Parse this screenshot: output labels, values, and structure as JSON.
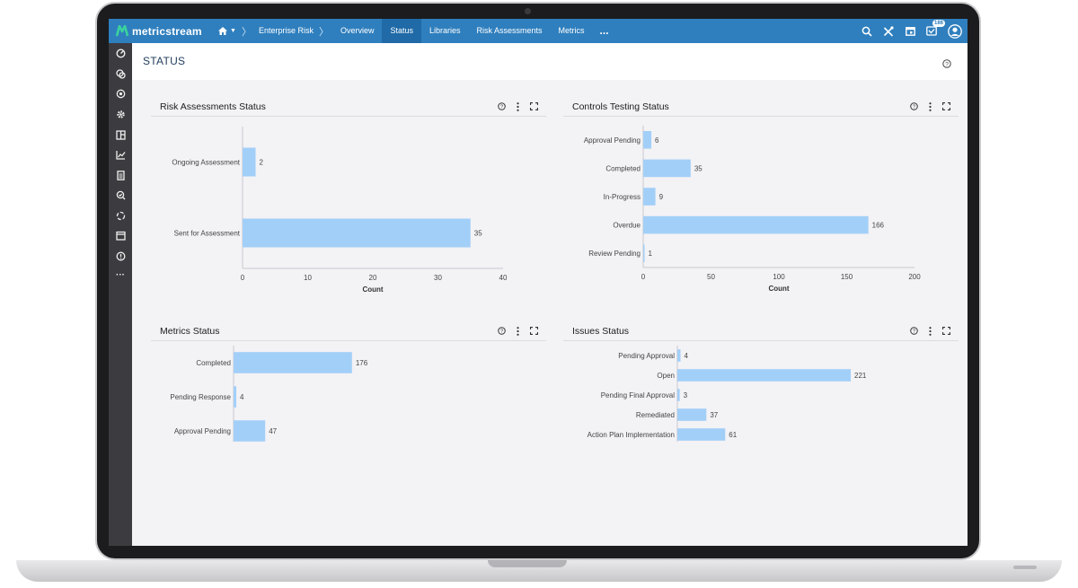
{
  "app": {
    "brand": "metricstream",
    "nav": {
      "breadcrumb": "Enterprise Risk",
      "items": [
        {
          "label": "Overview",
          "active": false
        },
        {
          "label": "Status",
          "active": true
        },
        {
          "label": "Libraries",
          "active": false
        },
        {
          "label": "Risk Assessments",
          "active": false
        },
        {
          "label": "Metrics",
          "active": false
        }
      ],
      "more": "...",
      "notification_count": "186",
      "icons": [
        "home-icon",
        "search-icon",
        "tools-icon",
        "calendar-icon",
        "notifications-icon",
        "user-avatar-icon"
      ]
    },
    "sidebar_icons": [
      "dashboard-icon",
      "risk-icon",
      "compliance-icon",
      "settings-icon",
      "library-icon",
      "analytics-icon",
      "document-icon",
      "audit-icon",
      "refresh-icon",
      "calendar-icon",
      "help-icon",
      "more-icon"
    ],
    "page_title": "STATUS"
  },
  "colors": {
    "nav": "#2f7fbe",
    "bar": "#a2cff8",
    "sidebar": "#3c3c40"
  },
  "chart_data": [
    {
      "type": "bar",
      "orientation": "horizontal",
      "title": "Risk Assessments Status",
      "categories": [
        "Ongoing Assessment",
        "Sent for Assessment"
      ],
      "values": [
        2,
        35
      ],
      "xlabel": "Count",
      "xlim": [
        0,
        40
      ],
      "xticks": [
        0,
        10,
        20,
        30,
        40
      ]
    },
    {
      "type": "bar",
      "orientation": "horizontal",
      "title": "Controls Testing Status",
      "categories": [
        "Approval Pending",
        "Completed",
        "In-Progress",
        "Overdue",
        "Review Pending"
      ],
      "values": [
        6,
        35,
        9,
        166,
        1
      ],
      "xlabel": "Count",
      "xlim": [
        0,
        200
      ],
      "xticks": [
        0,
        50,
        100,
        150,
        200
      ]
    },
    {
      "type": "bar",
      "orientation": "horizontal",
      "title": "Metrics Status",
      "categories": [
        "Completed",
        "Pending Response",
        "Approval Pending"
      ],
      "values": [
        176,
        4,
        47
      ],
      "xlim": [
        0,
        235
      ]
    },
    {
      "type": "bar",
      "orientation": "horizontal",
      "title": "Issues Status",
      "categories": [
        "Pending Approval",
        "Open",
        "Pending Final Approval",
        "Remediated",
        "Action Plan Implementation"
      ],
      "values": [
        4,
        221,
        3,
        37,
        61
      ],
      "xlim": [
        0,
        300
      ]
    }
  ]
}
